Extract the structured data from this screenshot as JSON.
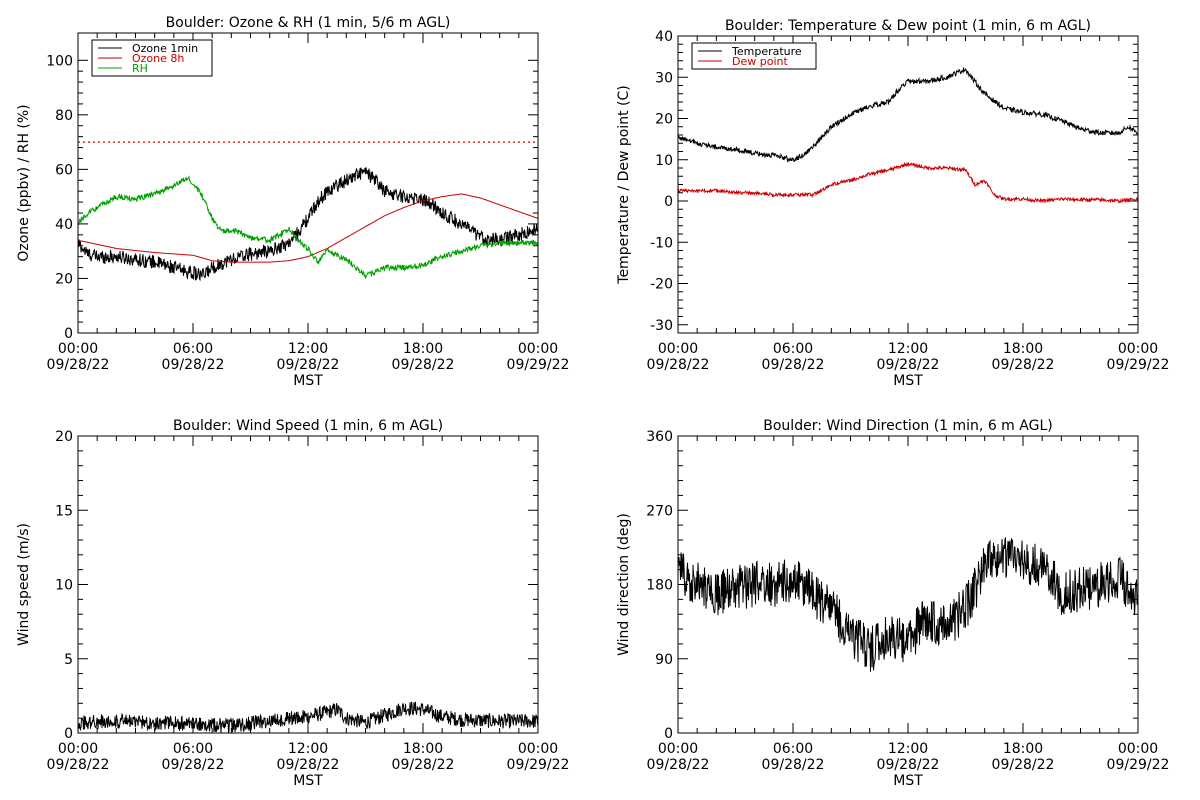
{
  "chart_data": [
    {
      "type": "line",
      "title": "Boulder: Ozone & RH (1 min, 5/6 m AGL)",
      "ylabel": "Ozone (ppbv) / RH (%)",
      "xlabel": "MST",
      "xlim": [
        0,
        24
      ],
      "ylim": [
        0,
        110
      ],
      "yticks": [
        0,
        20,
        40,
        60,
        80,
        100
      ],
      "xticks": [
        {
          "time": "00:00",
          "date": "09/28/22"
        },
        {
          "time": "06:00",
          "date": "09/28/22"
        },
        {
          "time": "12:00",
          "date": "09/28/22"
        },
        {
          "time": "18:00",
          "date": "09/28/22"
        },
        {
          "time": "00:00",
          "date": "09/29/22"
        }
      ],
      "legend": "top-left",
      "reference_line": {
        "y": 70,
        "color": "#cc0000",
        "style": "dotted"
      },
      "series": [
        {
          "name": "Ozone 1min",
          "color": "#000000",
          "noise": 2.5,
          "x": [
            0,
            0.5,
            1,
            2,
            3,
            4,
            5,
            6,
            6.5,
            7,
            8,
            9,
            10,
            11,
            11.5,
            12,
            12.5,
            13,
            14,
            14.5,
            15,
            15.5,
            16,
            17,
            18,
            18.5,
            19,
            20,
            21,
            22,
            23,
            24
          ],
          "y": [
            33,
            29,
            28,
            28,
            27,
            26,
            24,
            22,
            21,
            24,
            27,
            29,
            30,
            33,
            37,
            42,
            48,
            52,
            56,
            58,
            59,
            56,
            52,
            50,
            49,
            47,
            44,
            40,
            35,
            34,
            36,
            38
          ]
        },
        {
          "name": "Ozone 8h",
          "color": "#cc0000",
          "noise": 0,
          "x": [
            0,
            2,
            4,
            6,
            7,
            8,
            10,
            11,
            12,
            13,
            14,
            15,
            16,
            17,
            18,
            19,
            20,
            21,
            22,
            23,
            24
          ],
          "y": [
            34,
            31,
            29.5,
            28.5,
            26.5,
            26,
            26,
            26.5,
            28,
            31,
            35,
            39,
            43,
            46,
            48.5,
            50,
            51,
            49.5,
            47,
            44.5,
            42
          ]
        },
        {
          "name": "RH",
          "color": "#00a000",
          "noise": 1,
          "x": [
            0,
            0.5,
            1,
            2,
            3,
            4,
            5,
            5.7,
            6,
            6.5,
            7,
            7.5,
            8,
            9,
            10,
            11,
            11.5,
            12,
            12.5,
            13,
            14,
            15,
            16,
            17,
            18,
            19,
            20,
            21,
            22,
            23,
            24
          ],
          "y": [
            40,
            44,
            46,
            50,
            49,
            51,
            54,
            57,
            55,
            50,
            42,
            37,
            38,
            35,
            34,
            38,
            34,
            31,
            26,
            30,
            27,
            21,
            24,
            24,
            25,
            28,
            30,
            32,
            33,
            33,
            33
          ]
        }
      ]
    },
    {
      "type": "line",
      "title": "Boulder: Temperature & Dew point (1 min, 6 m AGL)",
      "ylabel": "Temperature / Dew point (C)",
      "xlabel": "MST",
      "xlim": [
        0,
        24
      ],
      "ylim": [
        -32,
        40
      ],
      "yticks": [
        -30,
        -20,
        -10,
        0,
        10,
        20,
        30,
        40
      ],
      "xticks": [
        {
          "time": "00:00",
          "date": "09/28/22"
        },
        {
          "time": "06:00",
          "date": "09/28/22"
        },
        {
          "time": "12:00",
          "date": "09/28/22"
        },
        {
          "time": "18:00",
          "date": "09/28/22"
        },
        {
          "time": "00:00",
          "date": "09/29/22"
        }
      ],
      "legend": "top-left",
      "series": [
        {
          "name": "Temperature",
          "color": "#000000",
          "noise": 0.6,
          "x": [
            0,
            1,
            2,
            3,
            4,
            5,
            6,
            6.5,
            7,
            8,
            9,
            10,
            11,
            11.5,
            12,
            13,
            14,
            15,
            15.3,
            16,
            17,
            18,
            19,
            20,
            21,
            22,
            23,
            23.5,
            24
          ],
          "y": [
            15.5,
            14,
            13,
            12.5,
            11.5,
            11,
            10,
            11,
            13,
            18,
            21,
            23,
            24,
            27,
            29,
            29,
            30,
            32,
            30,
            26,
            22.5,
            21.5,
            21,
            19.5,
            17.5,
            16.5,
            16.5,
            18,
            16.5
          ]
        },
        {
          "name": "Dew point",
          "color": "#cc0000",
          "noise": 0.4,
          "x": [
            0,
            1,
            2,
            3,
            4,
            5,
            6,
            7,
            7.5,
            8,
            9,
            10,
            11,
            12,
            13,
            14,
            15,
            15.5,
            16,
            16.5,
            17,
            18,
            19,
            20,
            21,
            22,
            23,
            24
          ],
          "y": [
            2.5,
            2.5,
            2.5,
            2,
            2,
            1.5,
            1.5,
            1.5,
            2.5,
            4,
            5,
            6.5,
            7.5,
            9,
            8,
            8,
            7.5,
            4,
            5,
            1.5,
            0.5,
            0.5,
            0,
            0.5,
            0.3,
            0.3,
            0,
            0.5
          ]
        }
      ]
    },
    {
      "type": "line",
      "title": "Boulder: Wind Speed (1 min, 6 m AGL)",
      "ylabel": "Wind speed (m/s)",
      "xlabel": "MST",
      "xlim": [
        0,
        24
      ],
      "ylim": [
        0,
        20
      ],
      "yticks": [
        0,
        5,
        10,
        15,
        20
      ],
      "xticks": [
        {
          "time": "00:00",
          "date": "09/28/22"
        },
        {
          "time": "06:00",
          "date": "09/28/22"
        },
        {
          "time": "12:00",
          "date": "09/28/22"
        },
        {
          "time": "18:00",
          "date": "09/28/22"
        },
        {
          "time": "00:00",
          "date": "09/29/22"
        }
      ],
      "series": [
        {
          "color": "#000000",
          "noise": 0.5,
          "x": [
            0,
            2,
            4,
            6,
            8,
            10,
            11,
            12,
            13,
            13.5,
            14,
            15,
            16,
            17,
            18,
            19,
            20,
            22,
            24
          ],
          "y": [
            0.7,
            0.8,
            0.7,
            0.6,
            0.5,
            0.8,
            1.0,
            1.1,
            1.4,
            1.6,
            1.0,
            0.7,
            1.2,
            1.7,
            1.6,
            1.1,
            0.9,
            0.8,
            0.8
          ]
        }
      ]
    },
    {
      "type": "line",
      "title": "Boulder: Wind Direction (1 min, 6 m AGL)",
      "ylabel": "Wind direction (deg)",
      "xlabel": "MST",
      "xlim": [
        0,
        24
      ],
      "ylim": [
        0,
        360
      ],
      "yticks": [
        0,
        90,
        180,
        270,
        360
      ],
      "xticks": [
        {
          "time": "00:00",
          "date": "09/28/22"
        },
        {
          "time": "06:00",
          "date": "09/28/22"
        },
        {
          "time": "12:00",
          "date": "09/28/22"
        },
        {
          "time": "18:00",
          "date": "09/28/22"
        },
        {
          "time": "00:00",
          "date": "09/29/22"
        }
      ],
      "series": [
        {
          "color": "#000000",
          "noise": 28,
          "x": [
            0,
            1,
            2,
            3,
            4,
            5,
            6,
            7,
            8,
            9,
            10,
            11,
            12,
            13,
            14,
            15,
            16,
            17,
            18,
            19,
            20,
            21,
            22,
            23,
            24
          ],
          "y": [
            200,
            180,
            170,
            175,
            180,
            180,
            185,
            170,
            150,
            120,
            100,
            120,
            110,
            140,
            130,
            150,
            200,
            215,
            210,
            200,
            170,
            175,
            180,
            190,
            160
          ]
        }
      ]
    }
  ]
}
